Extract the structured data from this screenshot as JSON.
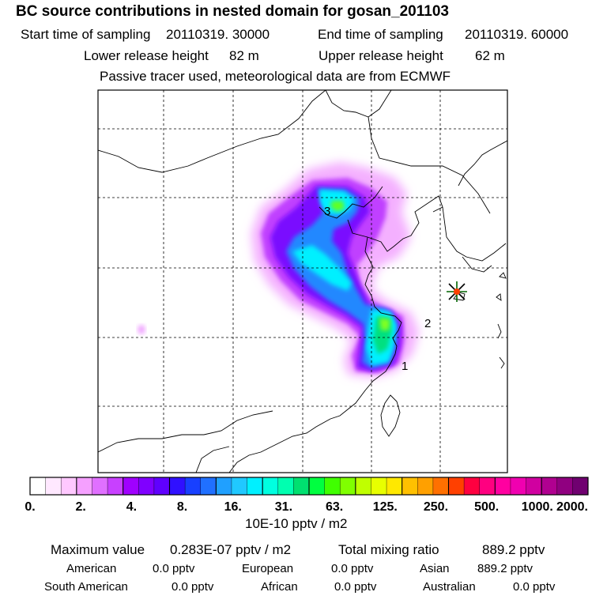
{
  "title": "BC  source contributions in nested domain for gosan_201103",
  "sampling": {
    "start_label": "Start time of sampling",
    "start_value": "20110319. 30000",
    "end_label": "End time of sampling",
    "end_value": "20110319. 60000"
  },
  "release": {
    "lower_label": "Lower release height",
    "lower_value": "82 m",
    "upper_label": "Upper release height",
    "upper_value": "62 m"
  },
  "note": "Passive tracer used, meteorological data are from ECMWF",
  "markers": [
    "1",
    "2",
    "3"
  ],
  "receptor_icon": "star-icon",
  "colorbar": {
    "tick_labels": [
      "0.",
      "2.",
      "4.",
      "8.",
      "16.",
      "31.",
      "63.",
      "125.",
      "250.",
      "500.",
      "1000.",
      "2000."
    ],
    "colors": [
      "#ffffff",
      "#ffe8ff",
      "#ffc8ff",
      "#f5a0ff",
      "#e070ff",
      "#c840ff",
      "#a000ff",
      "#8000ff",
      "#6000ff",
      "#3010ff",
      "#1840ff",
      "#2070ff",
      "#20a0ff",
      "#20c8ff",
      "#00f0ff",
      "#00ffe0",
      "#00ffb0",
      "#00e070",
      "#00ff40",
      "#40ff00",
      "#80ff00",
      "#c0ff00",
      "#e8ff00",
      "#ffe800",
      "#ffc000",
      "#ffa000",
      "#ff7000",
      "#ff4000",
      "#ff0040",
      "#ff0080",
      "#ff00a0",
      "#f000b0",
      "#d000a0",
      "#b00090",
      "#900080",
      "#700070"
    ],
    "unit": "10E-10 pptv / m2"
  },
  "summary": {
    "max_label": "Maximum value",
    "max_value": "0.283E-07 pptv / m2",
    "total_label": "Total mixing ratio",
    "total_value": "889.2 pptv",
    "regions": [
      {
        "name": "American",
        "value": "0.0 pptv"
      },
      {
        "name": "European",
        "value": "0.0 pptv"
      },
      {
        "name": "Asian",
        "value": "889.2 pptv"
      },
      {
        "name": "South American",
        "value": "0.0 pptv"
      },
      {
        "name": "African",
        "value": "0.0 pptv"
      },
      {
        "name": "Australian",
        "value": "0.0 pptv"
      }
    ]
  }
}
